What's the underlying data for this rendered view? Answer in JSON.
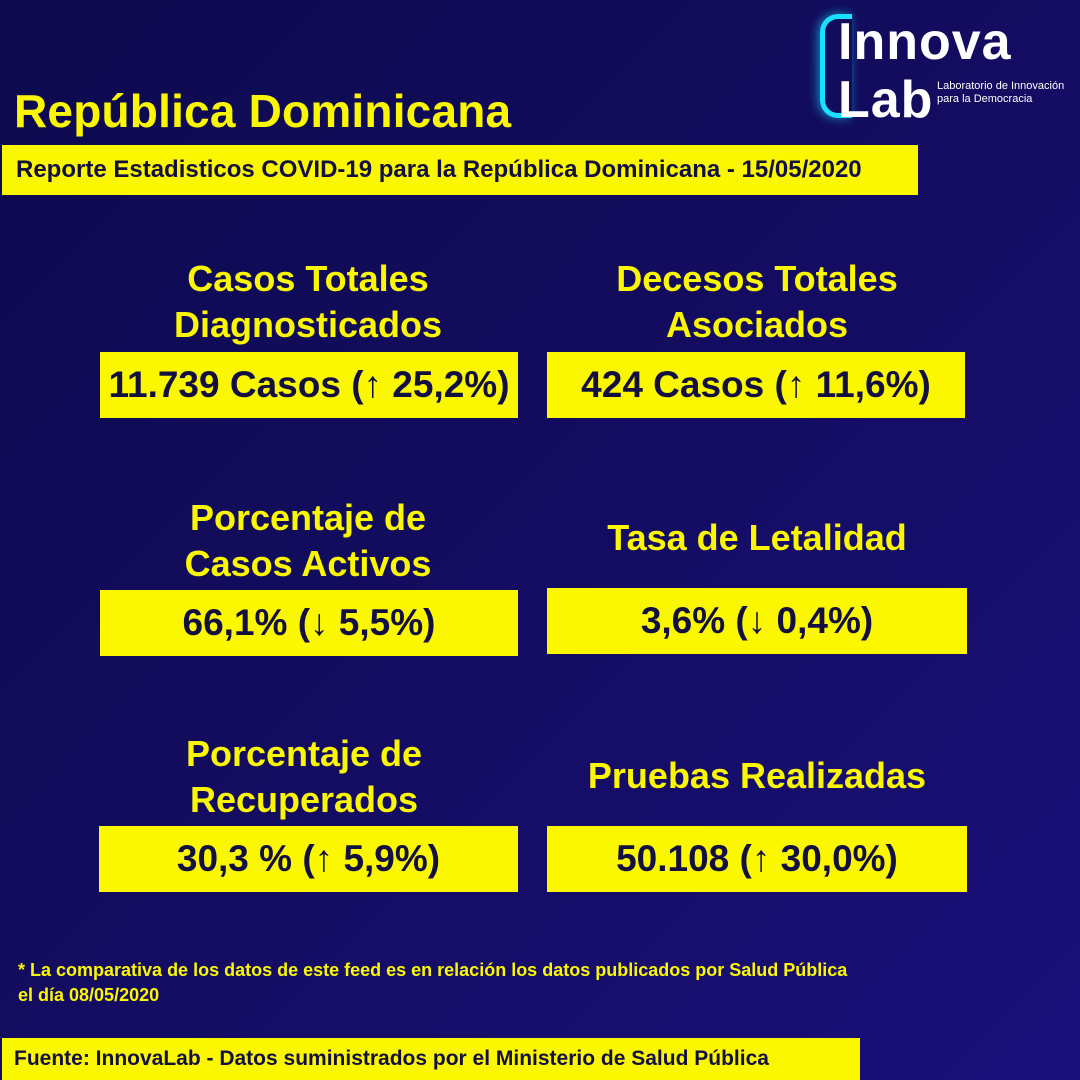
{
  "header": {
    "title": "República Dominicana",
    "subtitle": "Reporte Estadisticos COVID-19 para la República Dominicana - 15/05/2020"
  },
  "logo": {
    "line1": "Innova",
    "line2": "Lab",
    "tagline1": "Laboratorio de Innovación",
    "tagline2": "para la Democracia",
    "accent_color": "#18e0ff"
  },
  "stats": [
    {
      "label_line1": "Casos Totales",
      "label_line2": "Diagnosticados",
      "value": "11.739 Casos (↑ 25,2%)"
    },
    {
      "label_line1": "Decesos Totales",
      "label_line2": "Asociados",
      "value": "424 Casos (↑ 11,6%)"
    },
    {
      "label_line1": "Porcentaje de",
      "label_line2": "Casos Activos",
      "value": "66,1% (↓ 5,5%)"
    },
    {
      "label_line1": "Tasa de Letalidad",
      "value": "3,6% (↓ 0,4%)"
    },
    {
      "label_line1": "Porcentaje de",
      "label_line2": "Recuperados",
      "value": "30,3 % (↑ 5,9%)"
    },
    {
      "label_line1": "Pruebas Realizadas",
      "value": "50.108 (↑ 30,0%)"
    }
  ],
  "footnote": {
    "line1": "* La comparativa de los datos de este feed es en relación los datos publicados por Salud Pública",
    "line2": "el día 08/05/2020"
  },
  "source": "Fuente: InnovaLab - Datos suministrados por el Ministerio de Salud Pública",
  "colors": {
    "accent": "#fbf700",
    "background": "#130c5e",
    "text_dark": "#131040"
  }
}
